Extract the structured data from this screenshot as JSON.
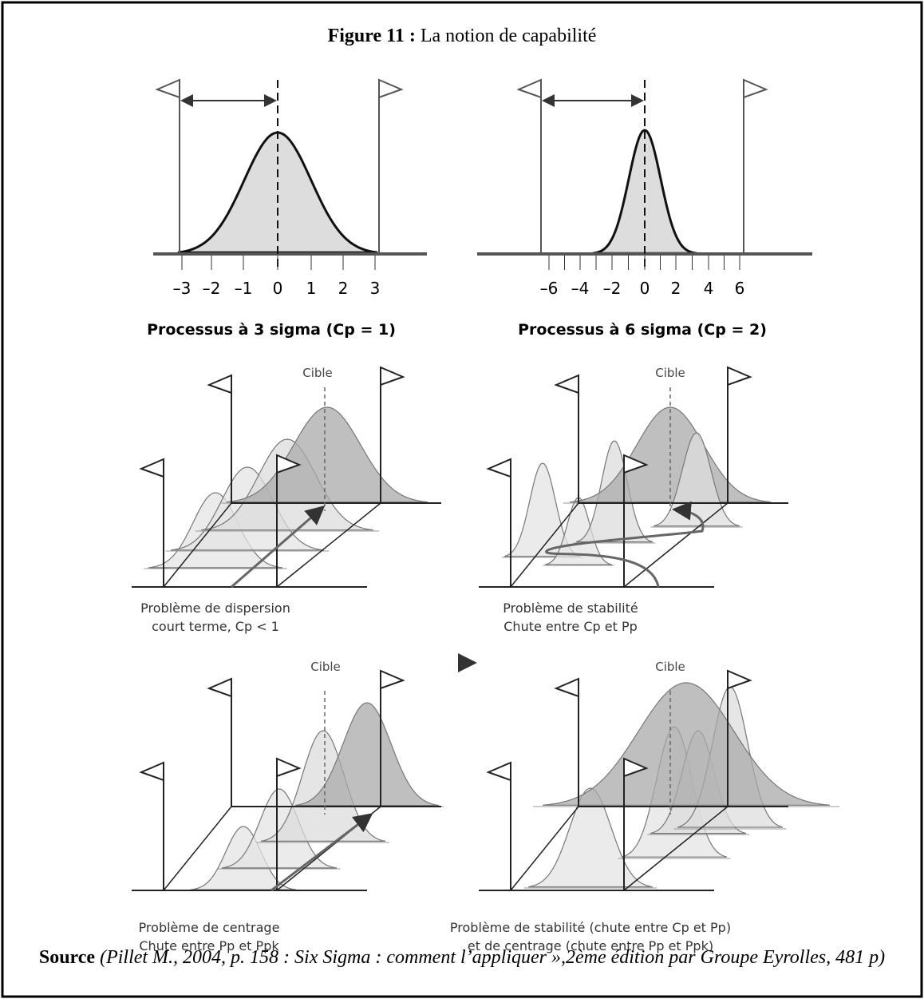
{
  "title": {
    "label": "Figure 11 :",
    "text": "La notion de capabilité"
  },
  "top_panels": [
    {
      "tick_labels": [
        "–3",
        "–2",
        "–1",
        "0",
        "1",
        "2",
        "3"
      ],
      "caption": "Processus à 3 sigma (Cp = 1)"
    },
    {
      "tick_labels": [
        "–6",
        "–4",
        "–2",
        "0",
        "2",
        "4",
        "6"
      ],
      "caption": "Processus à 6 sigma (Cp = 2)"
    }
  ],
  "panels": [
    {
      "target": "Cible",
      "caption": [
        "Problème de dispersion",
        "court terme, Cp < 1"
      ]
    },
    {
      "target": "Cible",
      "caption": [
        "Problème de stabilité",
        "Chute entre Cp et Pp"
      ]
    },
    {
      "target": "Cible",
      "caption": [
        "Problème de centrage",
        "Chute entre Pp et Ppk"
      ]
    },
    {
      "target": "Cible",
      "caption": [
        "Problème de stabilité (chute entre Cp et Pp)",
        "et de centrage (chute entre Pp et Ppk)"
      ]
    }
  ],
  "source": {
    "label": "Source",
    "text": "(Pillet M., 2004, p. 158 : Six Sigma : comment l’appliquer »,2ème édition par Groupe Eyrolles, 481 p)"
  }
}
